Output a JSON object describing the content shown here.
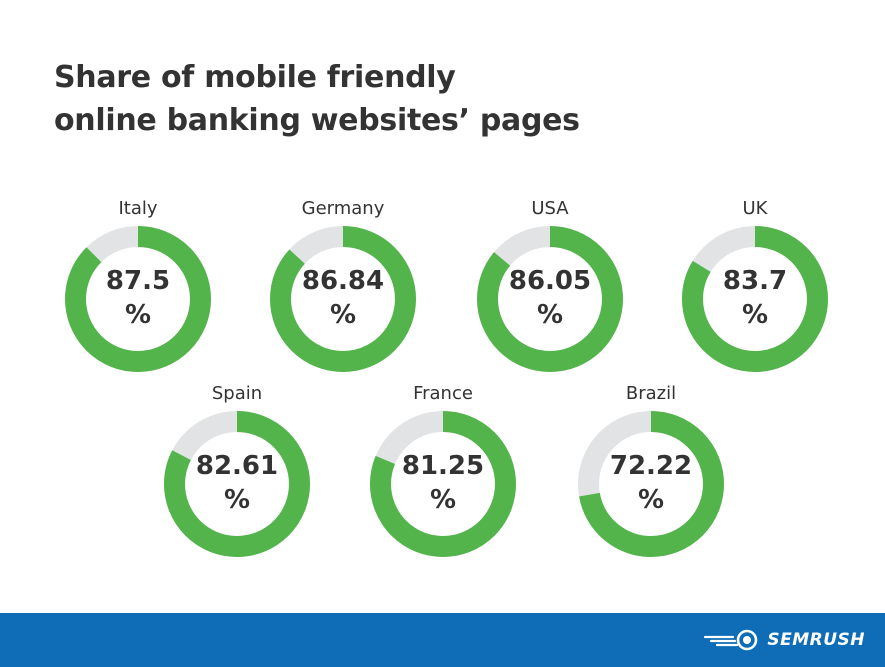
{
  "title_lines": [
    "Share of mobile friendly",
    "online banking websites’ pages"
  ],
  "colors": {
    "filled": "#52b44a",
    "remainder": "#e2e3e4",
    "footer": "#0e6db6",
    "text": "#333333"
  },
  "chart_data": {
    "type": "pie",
    "title": "Share of mobile friendly online banking websites’ pages",
    "categories": [
      "Italy",
      "Germany",
      "USA",
      "UK",
      "Spain",
      "France",
      "Brazil"
    ],
    "values": [
      87.5,
      86.84,
      86.05,
      83.7,
      82.61,
      81.25,
      72.22
    ],
    "value_labels": [
      "87.5",
      "86.84",
      "86.05",
      "83.7",
      "82.61",
      "81.25",
      "72.22"
    ],
    "unit": "%"
  },
  "brand": {
    "name": "SEMRUSH",
    "icon": "semrush-logo-icon"
  }
}
